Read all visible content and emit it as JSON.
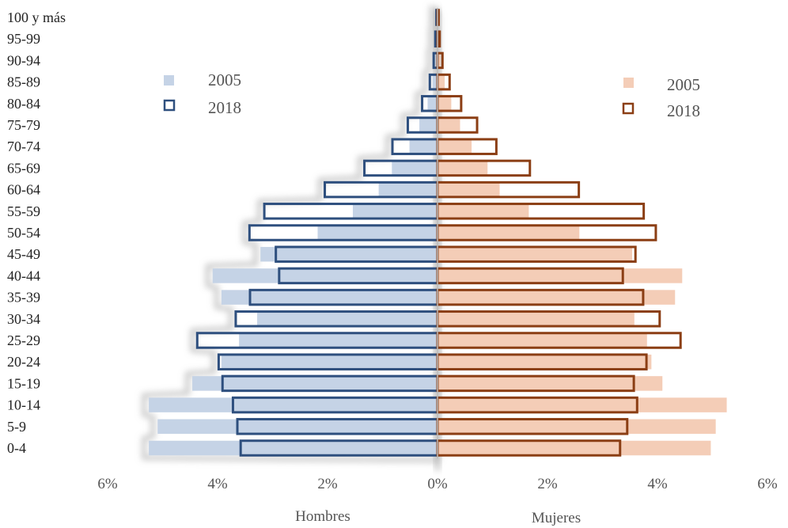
{
  "chart_data": {
    "type": "bar",
    "orientation": "horizontal",
    "categories": [
      "100 y más",
      "95-99",
      "90-94",
      "85-89",
      "80-84",
      "75-79",
      "70-74",
      "65-69",
      "60-64",
      "55-59",
      "50-54",
      "45-49",
      "40-44",
      "35-39",
      "30-34",
      "25-29",
      "20-24",
      "15-19",
      "10-14",
      "5-9",
      "0-4"
    ],
    "series": [
      {
        "name": "2005",
        "side": "Hombres",
        "color": "#c5d3e6",
        "style": "filled",
        "values": [
          0.0,
          0.02,
          0.04,
          0.09,
          0.18,
          0.33,
          0.51,
          0.83,
          1.07,
          1.54,
          2.18,
          3.22,
          4.09,
          3.93,
          3.28,
          3.61,
          3.93,
          4.46,
          5.25,
          5.09,
          5.25
        ]
      },
      {
        "name": "2018",
        "side": "Hombres",
        "color": "#2e4f7e",
        "style": "outline",
        "values": [
          0.02,
          0.04,
          0.07,
          0.14,
          0.28,
          0.54,
          0.82,
          1.33,
          2.05,
          3.15,
          3.42,
          2.94,
          2.88,
          3.41,
          3.67,
          4.37,
          3.98,
          3.91,
          3.72,
          3.64,
          3.58
        ]
      },
      {
        "name": "2005",
        "side": "Mujeres",
        "color": "#f4cdb7",
        "style": "filled",
        "values": [
          0.0,
          0.02,
          0.05,
          0.13,
          0.25,
          0.41,
          0.62,
          0.91,
          1.13,
          1.66,
          2.58,
          3.54,
          4.45,
          4.32,
          3.58,
          3.81,
          3.89,
          4.09,
          5.26,
          5.06,
          4.97
        ]
      },
      {
        "name": "2018",
        "side": "Mujeres",
        "color": "#8b3e14",
        "style": "outline",
        "values": [
          0.02,
          0.04,
          0.09,
          0.22,
          0.43,
          0.72,
          1.07,
          1.68,
          2.57,
          3.75,
          3.97,
          3.6,
          3.37,
          3.74,
          4.04,
          4.42,
          3.8,
          3.57,
          3.63,
          3.45,
          3.32
        ]
      }
    ],
    "xticks": [
      "6%",
      "4%",
      "2%",
      "0%",
      "2%",
      "4%",
      "6%"
    ],
    "xlim": [
      -6,
      6
    ],
    "left_label": "Hombres",
    "right_label": "Mujeres",
    "legend_left": [
      {
        "label": "2005",
        "style": "filled"
      },
      {
        "label": "2018",
        "style": "outline"
      }
    ],
    "legend_right": [
      {
        "label": "2005",
        "style": "filled"
      },
      {
        "label": "2018",
        "style": "outline"
      }
    ],
    "grid": false,
    "colors": {
      "hombres_2005": "#c5d3e6",
      "hombres_2018": "#2e4f7e",
      "mujeres_2005": "#f4cdb7",
      "mujeres_2018": "#8b3e14"
    }
  }
}
